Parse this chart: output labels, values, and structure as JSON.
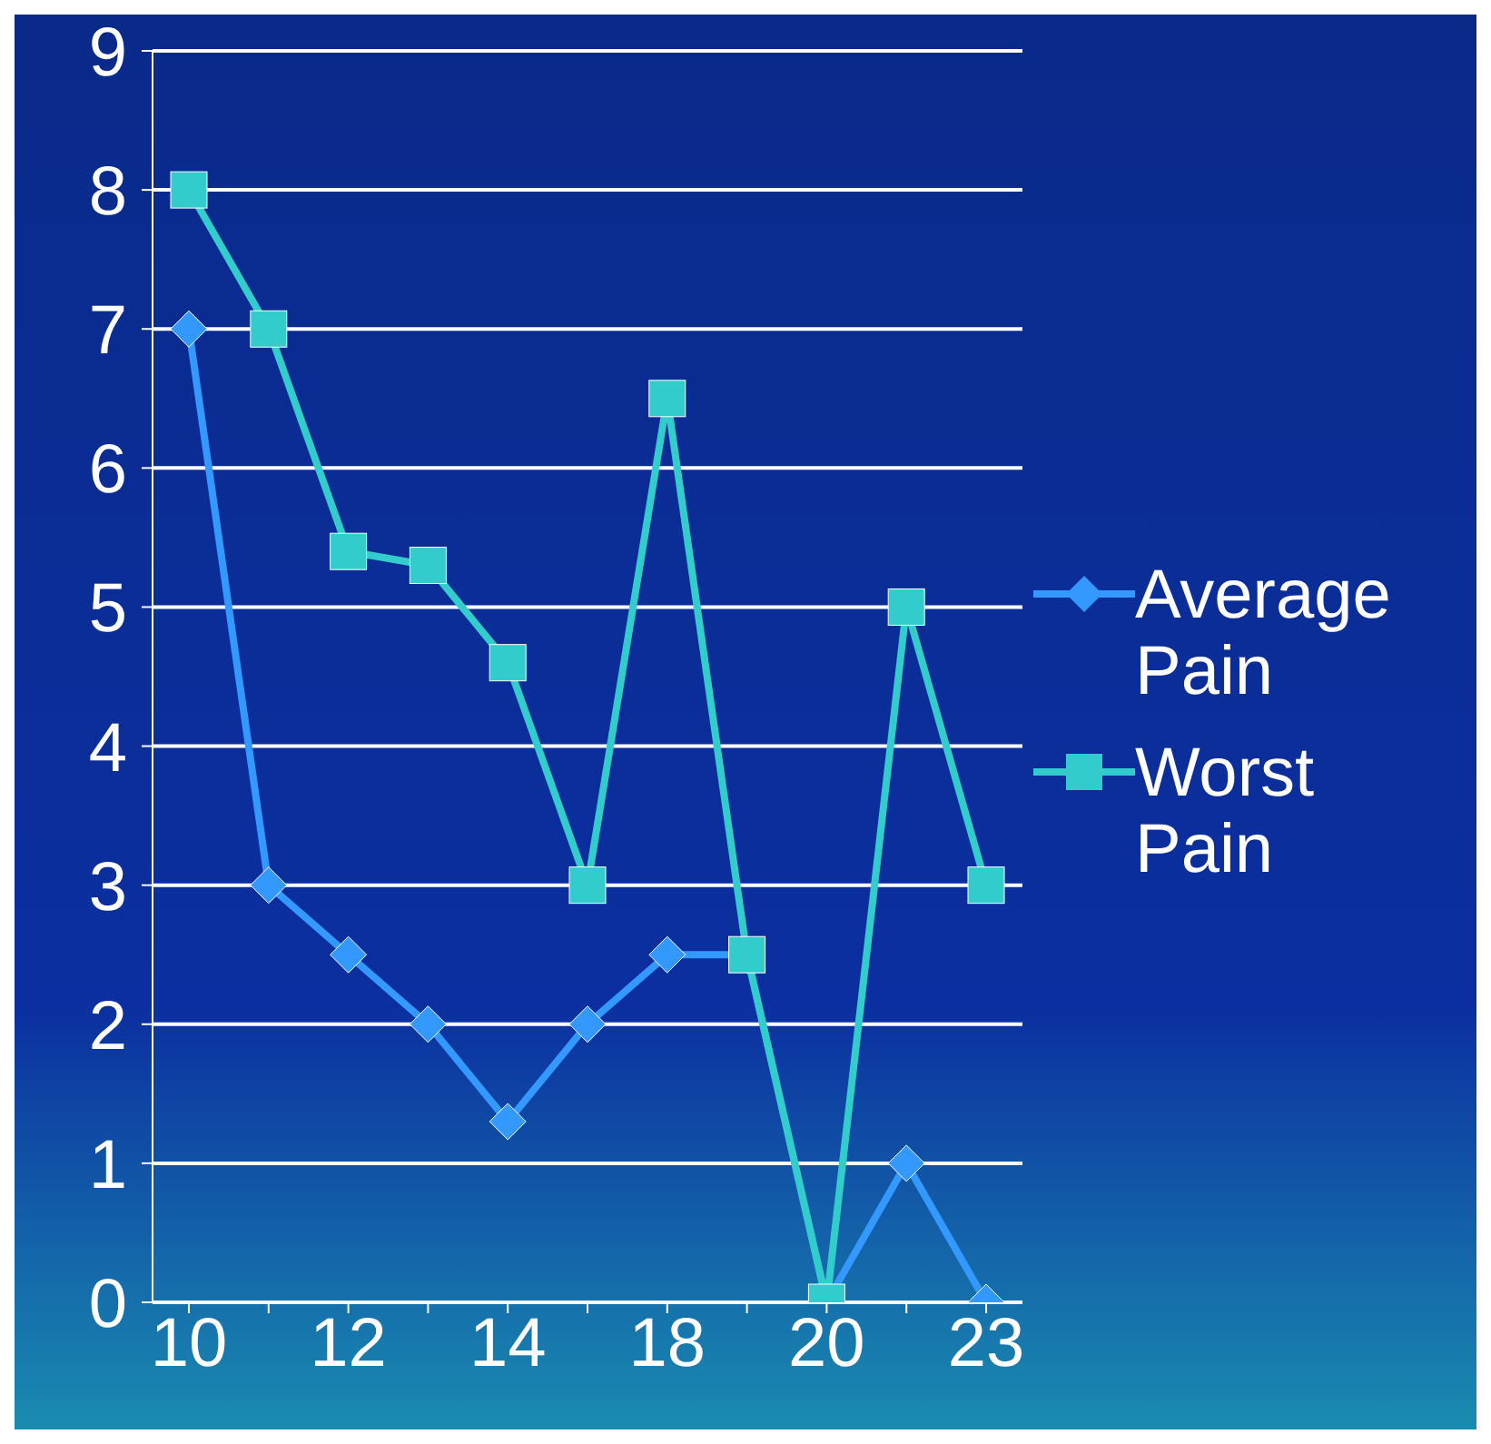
{
  "chart_data": {
    "type": "line",
    "categories": [
      "10",
      null,
      "12",
      null,
      "14",
      null,
      "18",
      null,
      "20",
      null,
      "23"
    ],
    "series": [
      {
        "name": "Average Pain",
        "color": "#3399ff",
        "marker": "diamond",
        "values": [
          7,
          3,
          2.5,
          2,
          1.3,
          2,
          2.5,
          2.5,
          0,
          1,
          0
        ]
      },
      {
        "name": "Worst Pain",
        "color": "#33cccc",
        "marker": "square",
        "values": [
          8,
          7,
          5.4,
          5.3,
          4.6,
          3,
          6.5,
          2.5,
          0,
          5,
          3
        ]
      }
    ],
    "ylim": [
      0,
      9
    ],
    "yticks": [
      0,
      1,
      2,
      3,
      4,
      5,
      6,
      7,
      8,
      9
    ],
    "grid": "y",
    "legend": "right"
  }
}
